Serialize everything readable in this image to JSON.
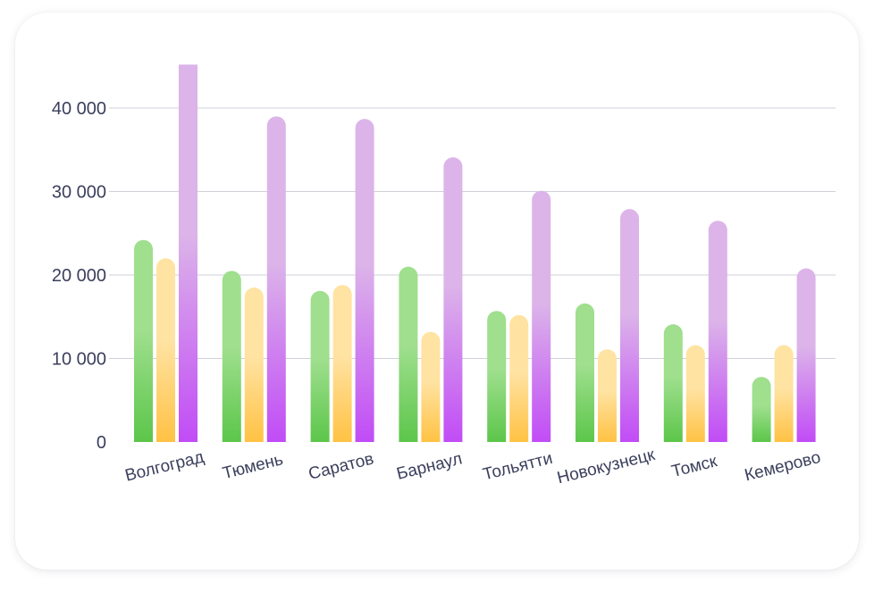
{
  "chart_data": {
    "type": "bar",
    "categories": [
      "Волгоград",
      "Тюмень",
      "Саратов",
      "Барнаул",
      "Тольятти",
      "Новокузнецк",
      "Томск",
      "Кемерово"
    ],
    "series": [
      {
        "color": "green",
        "values": [
          24200,
          20500,
          18100,
          21000,
          15700,
          16600,
          14100,
          7800
        ]
      },
      {
        "color": "yellow",
        "values": [
          22000,
          18500,
          18800,
          13200,
          15200,
          11100,
          11600,
          11600
        ]
      },
      {
        "color": "purple",
        "values": [
          45200,
          39000,
          38700,
          34100,
          30100,
          27900,
          26500,
          20800
        ]
      }
    ],
    "yticks": [
      {
        "value": 0,
        "label": "0"
      },
      {
        "value": 10000,
        "label": "10 000"
      },
      {
        "value": 20000,
        "label": "20 000"
      },
      {
        "value": 30000,
        "label": "30 000"
      },
      {
        "value": 40000,
        "label": "40 000"
      }
    ],
    "ylim": [
      0,
      45200
    ],
    "grid": true,
    "title": "",
    "xlabel": "",
    "ylabel": ""
  },
  "colors": {
    "green_top": "#9fdf8e",
    "green_bottom": "#5cc64a",
    "yellow_top": "#ffe3a3",
    "yellow_bottom": "#ffc244",
    "purple_top": "#dcb4e9",
    "purple_bottom": "#c14cf6",
    "grid": "#cfd1d8",
    "text": "#3a3f5c"
  }
}
